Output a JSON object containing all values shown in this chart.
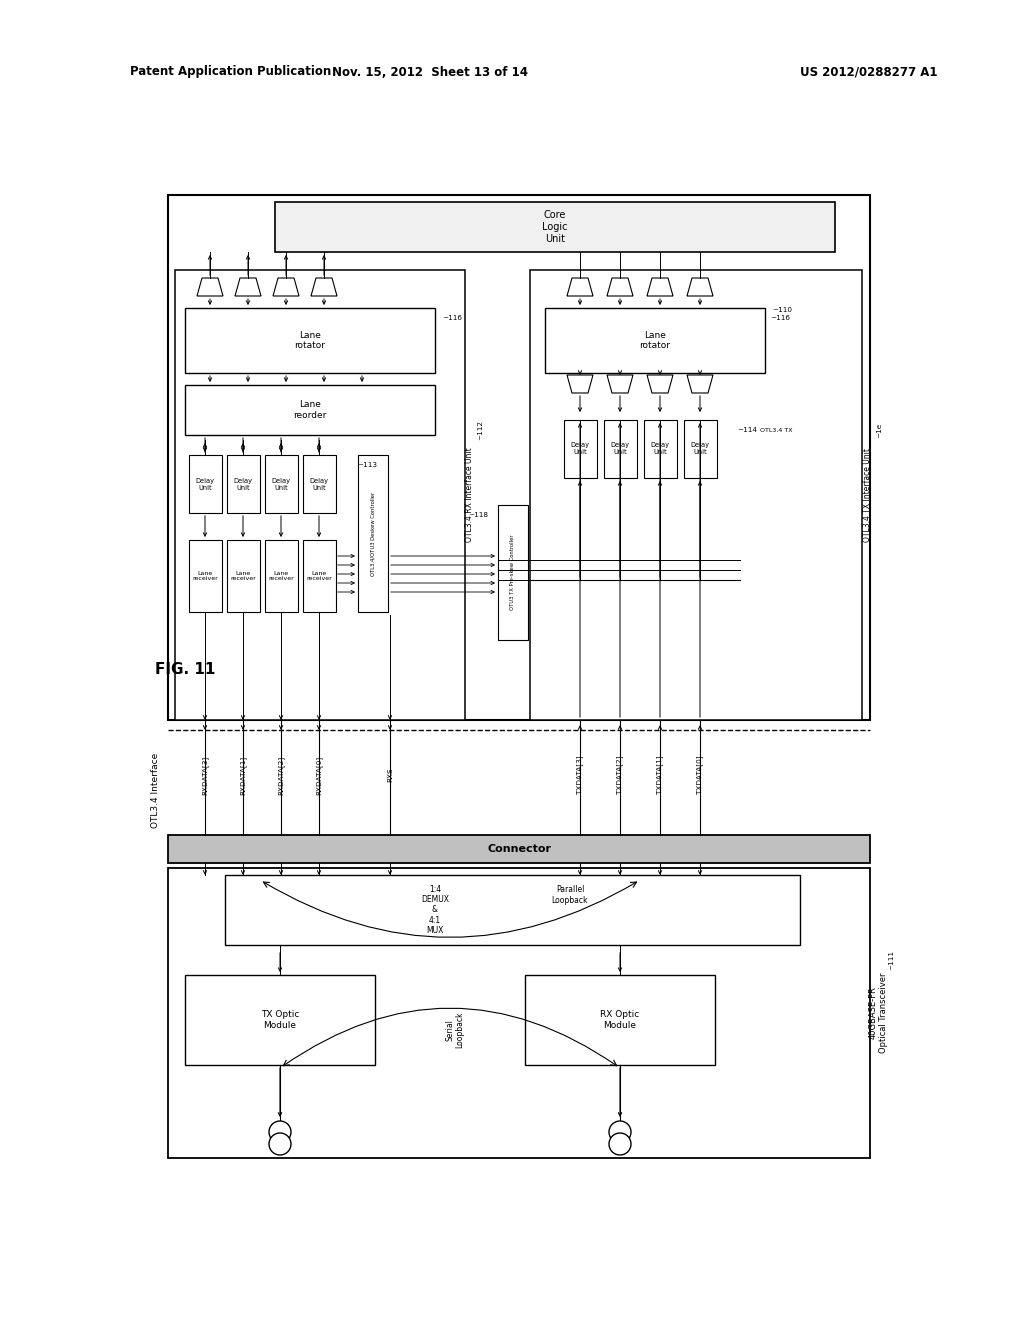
{
  "header_left": "Patent Application Publication",
  "header_mid": "Nov. 15, 2012  Sheet 13 of 14",
  "header_right": "US 2012/0288277 A1",
  "fig_label": "FIG. 11",
  "bg_color": "#ffffff"
}
